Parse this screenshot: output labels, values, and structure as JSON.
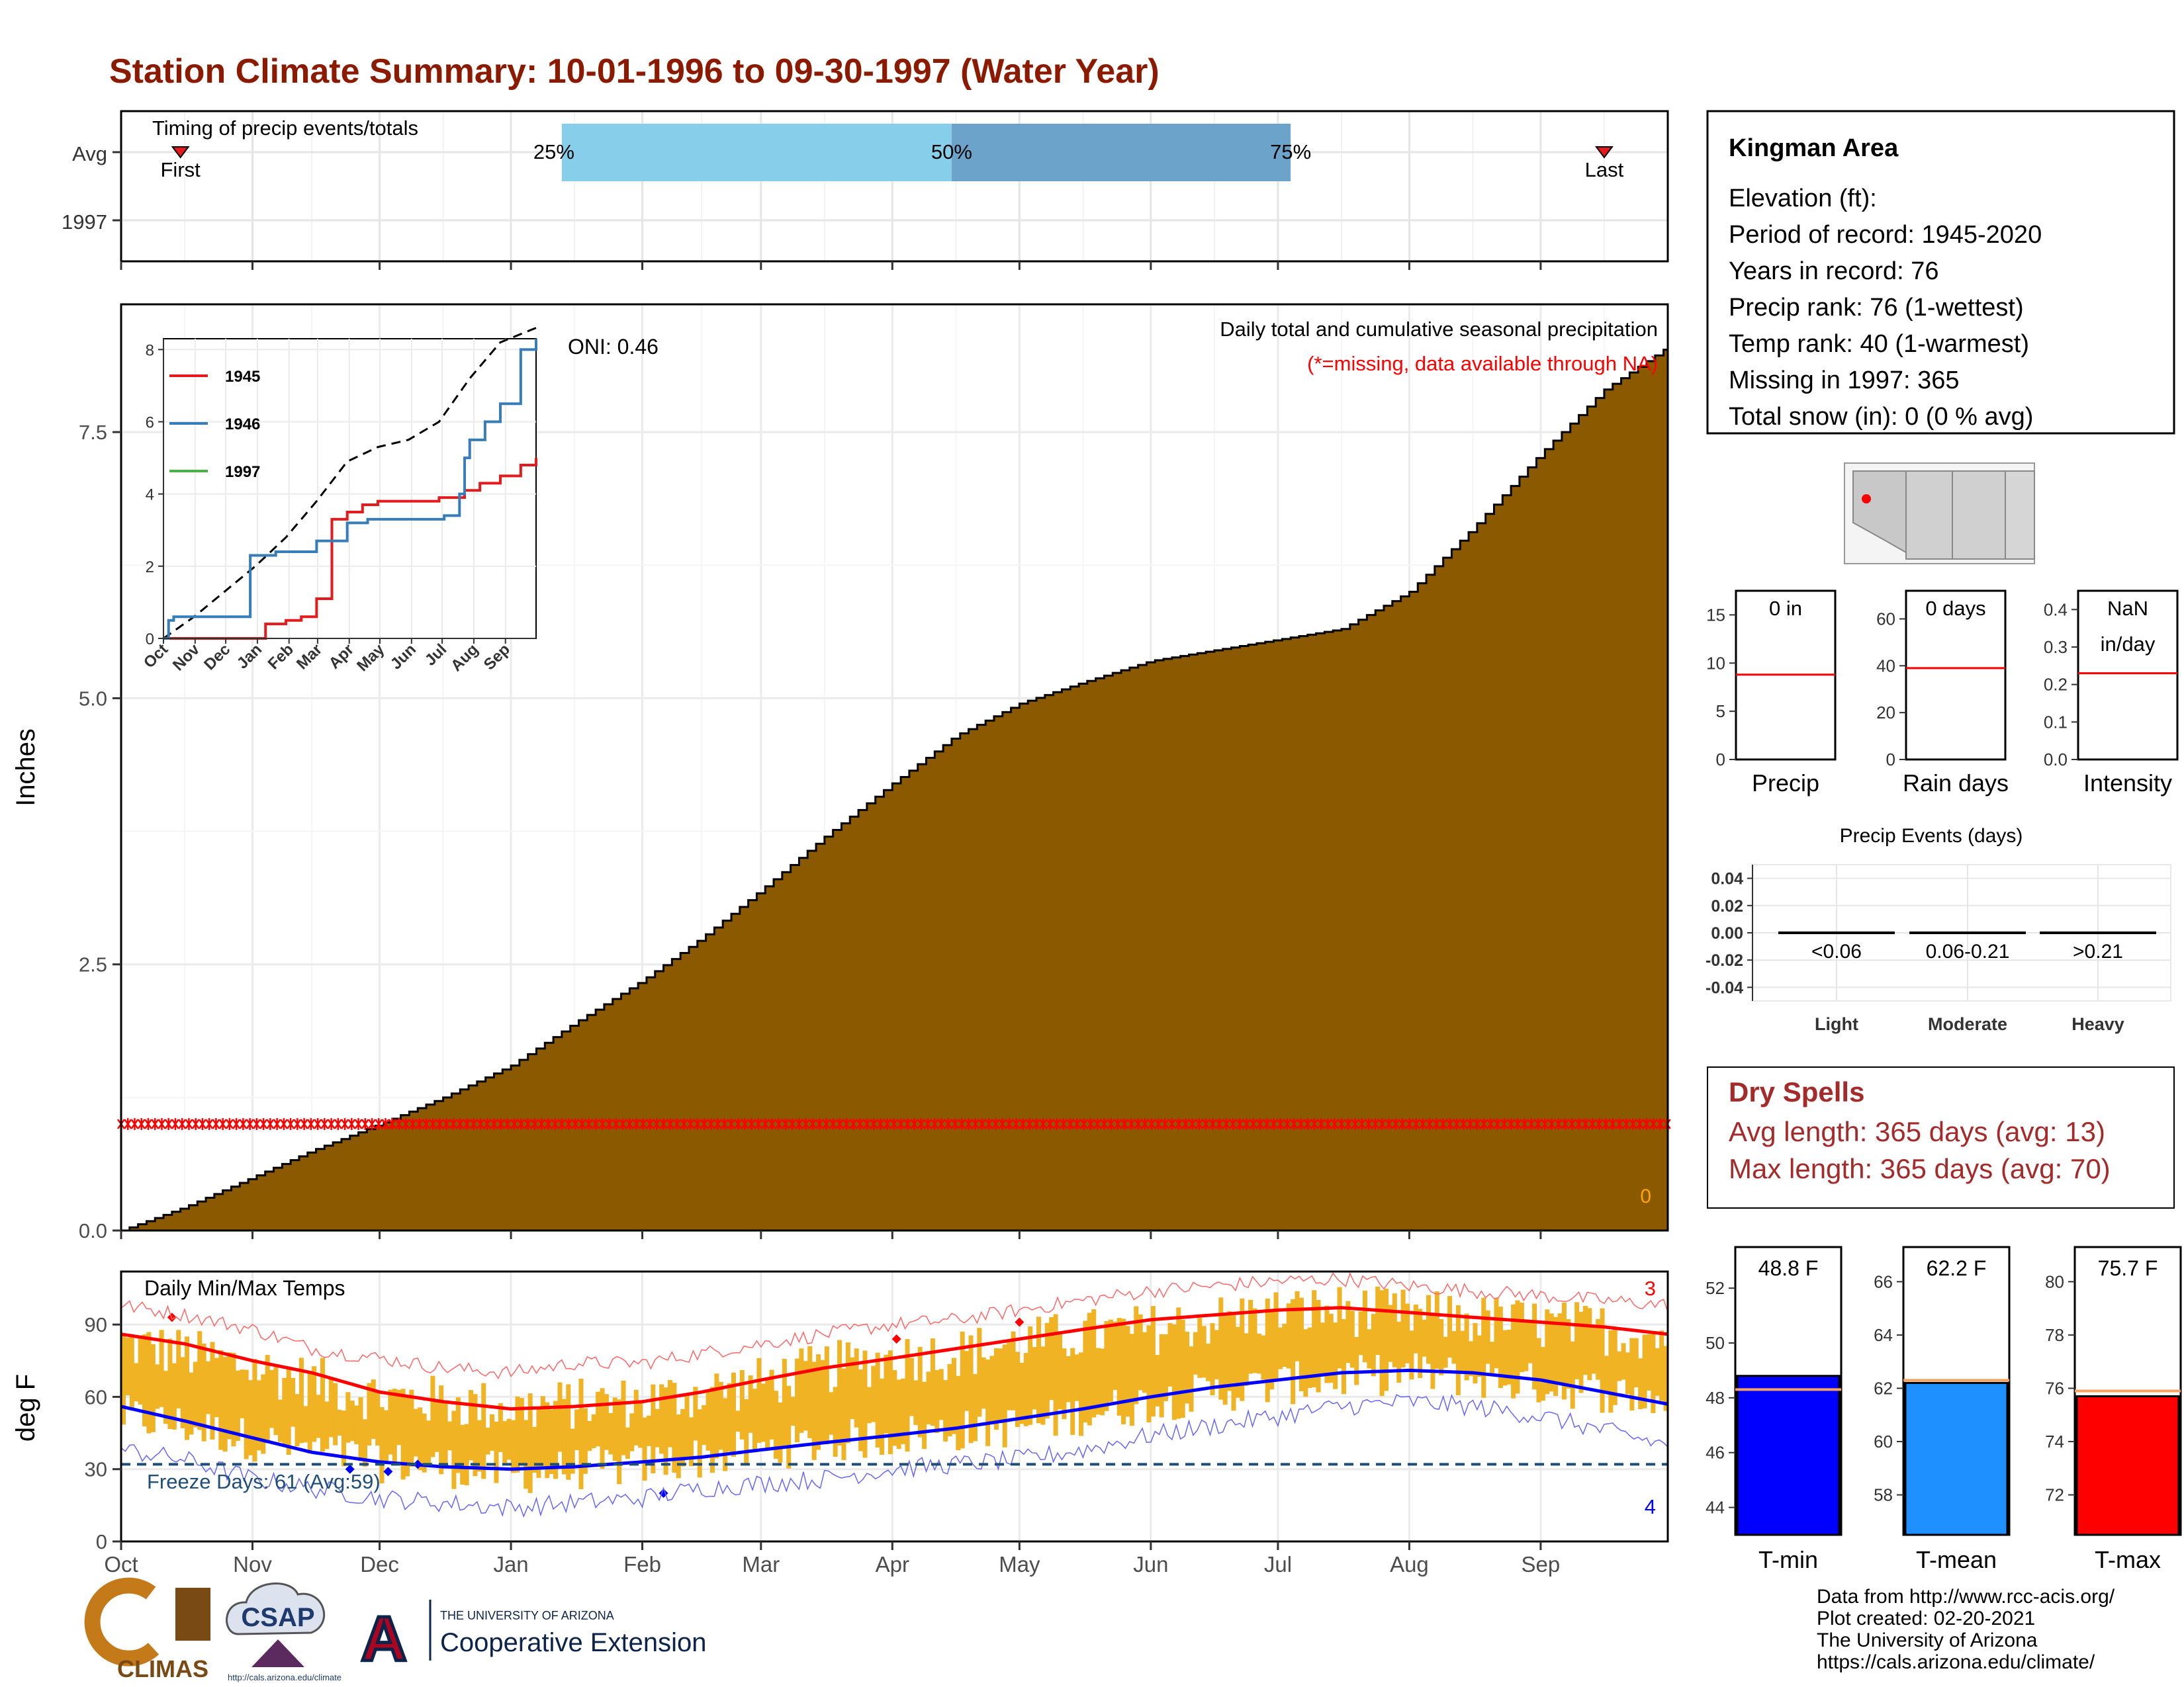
{
  "title": "Station Climate Summary: 10-01-1996 to 09-30-1997 (Water Year)",
  "colors": {
    "title": "#8B1A00",
    "cumulative_fill": "#8B5A00",
    "missing_marker": "#FF0000",
    "temp_bar": "#F0B323",
    "tmax_avg": "#FF0000",
    "tmin_avg": "#0000FF",
    "freeze_line": "#1F4E79",
    "dry_spell_text": "#A52A2A",
    "q_light": "#87CEEB",
    "q_dark": "#6BA3CB",
    "series_1945": "#E41A1C",
    "series_1946": "#377EB8",
    "series_1997": "#4DAF4A",
    "tmin_bar": "#0000FF",
    "tmean_bar": "#1E90FF",
    "tmax_bar": "#FF0000",
    "avg_line": "#F4A460"
  },
  "months": [
    "Oct",
    "Nov",
    "Dec",
    "Jan",
    "Feb",
    "Mar",
    "Apr",
    "May",
    "Jun",
    "Jul",
    "Aug",
    "Sep"
  ],
  "timing": {
    "label": "Timing of precip events/totals",
    "rows": [
      "Avg",
      "1997"
    ],
    "first_label": "First",
    "last_label": "Last",
    "first_day": 14,
    "last_day": 350,
    "q25_label": "25%",
    "q50_label": "50%",
    "q75_label": "75%",
    "q25_day": 104,
    "q50_day": 196,
    "q75_day": 276
  },
  "chart_data": [
    {
      "type": "area",
      "name": "cumulative",
      "subtitle": "Daily total and cumulative seasonal precipitation",
      "note": "(*=missing, data available through NA)",
      "ylabel": "Inches",
      "ylim": [
        0,
        8.7
      ],
      "yticks": [
        "0.0",
        "2.5",
        "5.0",
        "7.5"
      ],
      "yticks_values": [
        0,
        2.5,
        5.0,
        7.5
      ],
      "oni_label": "ONI: 0.46",
      "corner_count": "0",
      "missing_level": 1.0,
      "x_day": [
        0,
        15,
        31,
        45,
        61,
        76,
        92,
        107,
        123,
        137,
        151,
        166,
        182,
        197,
        212,
        227,
        243,
        258,
        273,
        288,
        304,
        319,
        335,
        350,
        365
      ],
      "cumulative": [
        0.0,
        0.22,
        0.5,
        0.75,
        1.0,
        1.25,
        1.55,
        1.95,
        2.35,
        2.75,
        3.2,
        3.7,
        4.2,
        4.65,
        4.95,
        5.15,
        5.35,
        5.45,
        5.55,
        5.65,
        6.0,
        6.6,
        7.3,
        7.9,
        8.3
      ]
    },
    {
      "type": "line",
      "name": "inset",
      "series": [
        {
          "name": "1945",
          "x": [
            0,
            93,
            100,
            120,
            135,
            150,
            165,
            180,
            195,
            210,
            225,
            240,
            250,
            255,
            270,
            280,
            295,
            300,
            310,
            330,
            350,
            365
          ],
          "values": [
            0,
            0,
            0.4,
            0.5,
            0.6,
            1.1,
            3.3,
            3.5,
            3.7,
            3.8,
            3.8,
            3.8,
            3.8,
            3.8,
            3.9,
            3.9,
            4.1,
            4.1,
            4.3,
            4.5,
            4.8,
            5.0
          ]
        },
        {
          "name": "1946",
          "x": [
            0,
            5,
            10,
            25,
            55,
            80,
            85,
            95,
            110,
            140,
            150,
            160,
            180,
            200,
            210,
            220,
            240,
            250,
            275,
            290,
            295,
            300,
            315,
            330,
            350,
            365
          ],
          "values": [
            0,
            0.5,
            0.6,
            0.6,
            0.6,
            0.6,
            2.3,
            2.3,
            2.4,
            2.4,
            2.7,
            2.7,
            3.2,
            3.3,
            3.3,
            3.3,
            3.3,
            3.3,
            3.4,
            4.0,
            5.0,
            5.5,
            6.0,
            6.5,
            8.0,
            8.3
          ]
        },
        {
          "name": "1997",
          "x": [],
          "values": []
        },
        {
          "name": "avg",
          "x": [
            0,
            30,
            60,
            90,
            120,
            150,
            180,
            210,
            240,
            270,
            300,
            330,
            365
          ],
          "values": [
            0,
            0.6,
            1.3,
            2.0,
            2.8,
            3.8,
            4.9,
            5.3,
            5.5,
            6.0,
            7.2,
            8.2,
            8.6
          ]
        }
      ],
      "ylim": [
        0,
        8.3
      ],
      "yticks": [
        "0",
        "2",
        "4",
        "6",
        "8"
      ],
      "yticks_values": [
        0,
        2,
        4,
        6,
        8
      ]
    },
    {
      "type": "bar",
      "name": "daily_temps",
      "title": "Daily Min/Max Temps",
      "ylabel": "deg F",
      "ylim": [
        0,
        112
      ],
      "yticks": [
        "0",
        "30",
        "60",
        "90"
      ],
      "yticks_values": [
        0,
        30,
        60,
        90
      ],
      "freeze_label": "Freeze Days: 61 (Avg:59)",
      "freeze_value": 32,
      "count_max": "3",
      "count_min": "4",
      "x_day": [
        0,
        15,
        31,
        45,
        61,
        76,
        92,
        107,
        123,
        137,
        151,
        166,
        182,
        197,
        212,
        227,
        243,
        258,
        273,
        288,
        304,
        319,
        335,
        350,
        365
      ],
      "tmax": [
        82,
        78,
        72,
        66,
        60,
        58,
        55,
        57,
        58,
        62,
        66,
        72,
        76,
        78,
        82,
        86,
        88,
        92,
        95,
        96,
        94,
        92,
        90,
        88,
        85
      ],
      "tmin": [
        52,
        48,
        42,
        38,
        33,
        31,
        28,
        30,
        32,
        35,
        38,
        41,
        44,
        46,
        48,
        53,
        58,
        62,
        65,
        68,
        70,
        68,
        65,
        62,
        58
      ],
      "tmax_avg": [
        86,
        82,
        75,
        70,
        62,
        58,
        55,
        56,
        58,
        62,
        67,
        72,
        76,
        80,
        84,
        88,
        92,
        94,
        96,
        97,
        95,
        93,
        91,
        89,
        86
      ],
      "tmin_avg": [
        56,
        50,
        43,
        37,
        33,
        31,
        30,
        31,
        33,
        35,
        38,
        41,
        44,
        47,
        51,
        55,
        60,
        64,
        67,
        70,
        71,
        70,
        67,
        62,
        57
      ],
      "tmax_record": [
        98,
        94,
        88,
        80,
        76,
        72,
        70,
        74,
        74,
        78,
        82,
        86,
        90,
        92,
        96,
        100,
        104,
        106,
        108,
        109,
        106,
        104,
        102,
        100,
        98
      ],
      "tmin_record": [
        38,
        34,
        26,
        22,
        18,
        16,
        14,
        16,
        18,
        22,
        24,
        26,
        30,
        32,
        34,
        38,
        44,
        48,
        52,
        56,
        58,
        56,
        52,
        46,
        40
      ]
    },
    {
      "type": "bar",
      "name": "precip_comparison",
      "categories": [
        "Precip",
        "Rain days",
        "Intensity"
      ],
      "value_labels": [
        "0 in",
        "0 days",
        "NaN\nin/day"
      ],
      "averages": [
        8.8,
        39,
        0.23
      ],
      "ylims": [
        [
          0,
          17.5
        ],
        [
          0,
          72
        ],
        [
          0,
          0.45
        ]
      ],
      "yticks": [
        [
          "0",
          "5",
          "10",
          "15"
        ],
        [
          "0",
          "20",
          "40",
          "60"
        ],
        [
          "0.0",
          "0.1",
          "0.2",
          "0.3",
          "0.4"
        ]
      ],
      "yticks_values": [
        [
          0,
          5,
          10,
          15
        ],
        [
          0,
          20,
          40,
          60
        ],
        [
          0,
          0.1,
          0.2,
          0.3,
          0.4
        ]
      ]
    },
    {
      "type": "bar",
      "name": "precip_events",
      "title": "Precip Events (days)",
      "categories": [
        "Light",
        "Moderate",
        "Heavy"
      ],
      "range_labels": [
        "<0.06",
        "0.06-0.21",
        ">0.21"
      ],
      "values": [
        0,
        0,
        0
      ],
      "ylim": [
        -0.05,
        0.05
      ],
      "yticks": [
        "0.04",
        "0.02",
        "0.00",
        "-0.02",
        "-0.04"
      ],
      "yticks_values": [
        0.04,
        0.02,
        0,
        -0.02,
        -0.04
      ]
    },
    {
      "type": "bar",
      "name": "temp_summary",
      "categories": [
        "T-min",
        "T-mean",
        "T-max"
      ],
      "value_labels": [
        "48.8 F",
        "62.2 F",
        "75.7 F"
      ],
      "values": [
        48.8,
        62.2,
        75.7
      ],
      "averages": [
        48.3,
        62.3,
        75.9
      ],
      "ylims": [
        [
          43,
          53.5
        ],
        [
          56.5,
          67.3
        ],
        [
          70.5,
          81.3
        ]
      ],
      "yticks": [
        [
          "44",
          "46",
          "48",
          "50",
          "52"
        ],
        [
          "58",
          "60",
          "62",
          "64",
          "66"
        ],
        [
          "72",
          "74",
          "76",
          "78",
          "80"
        ]
      ],
      "yticks_values": [
        [
          44,
          46,
          48,
          50,
          52
        ],
        [
          58,
          60,
          62,
          64,
          66
        ],
        [
          72,
          74,
          76,
          78,
          80
        ]
      ]
    }
  ],
  "station": {
    "name": "Kingman Area",
    "lines": [
      "Elevation (ft):",
      "Period of record: 1945-2020",
      "Years in record: 76",
      "Precip rank: 76 (1-wettest)",
      "Temp rank: 40 (1-warmest)",
      "Missing in 1997: 365",
      "Total snow (in): 0 (0 % avg)"
    ]
  },
  "dry_spells": {
    "title": "Dry Spells",
    "avg": "Avg length: 365 days (avg: 13)",
    "max": "Max length: 365 days (avg: 70)"
  },
  "footer": {
    "lines": [
      "Data from http://www.rcc-acis.org/",
      "Plot created: 02-20-2021",
      "The University of Arizona",
      "https://cals.arizona.edu/climate/"
    ],
    "logo_climas": "CLIMAS",
    "logo_csap": "CSAP",
    "logo_csap_url": "http://cals.arizona.edu/climate",
    "logo_ua_top": "THE UNIVERSITY OF ARIZONA",
    "logo_ua_bottom": "Cooperative Extension"
  }
}
